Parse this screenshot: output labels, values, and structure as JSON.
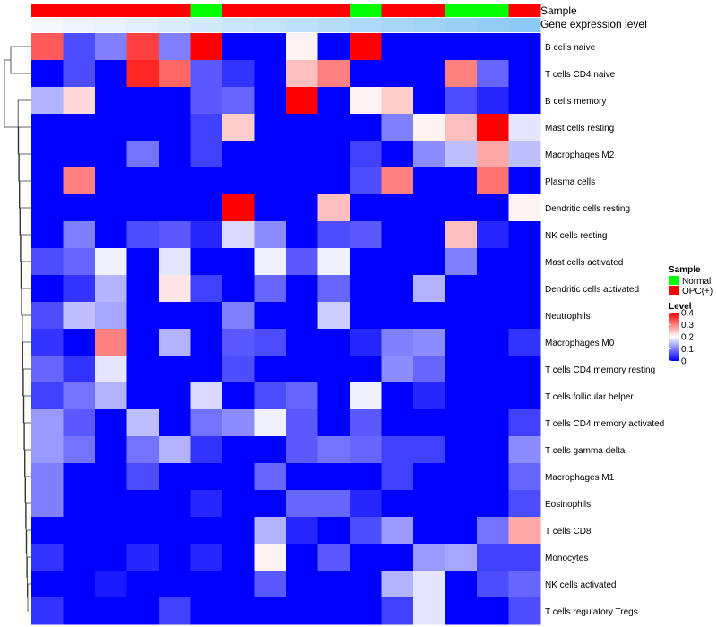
{
  "chart_data": {
    "type": "heatmap",
    "annotation_titles": {
      "sample": "Sample",
      "gene_expression": "Gene expression level"
    },
    "sample_annotation": [
      "OPC(+)",
      "OPC(+)",
      "OPC(+)",
      "OPC(+)",
      "OPC(+)",
      "Normal",
      "OPC(+)",
      "OPC(+)",
      "OPC(+)",
      "OPC(+)",
      "Normal",
      "OPC(+)",
      "OPC(+)",
      "Normal",
      "Normal",
      "OPC(+)"
    ],
    "gene_expression_annotation": [
      0.02,
      0.04,
      0.06,
      0.08,
      0.1,
      0.12,
      0.14,
      0.16,
      0.18,
      0.2,
      0.22,
      0.24,
      0.26,
      0.28,
      0.3,
      0.32
    ],
    "rows": [
      "B cells naive",
      "T cells CD4 naive",
      "B cells memory",
      "Mast cells resting",
      "Macrophages M2",
      "Plasma cells",
      "Dendritic cells resting",
      "NK cells resting",
      "Mast cells activated",
      "Dendritic cells activated",
      "Neutrophils",
      "Macrophages M0",
      "T cells CD4 memory resting",
      "T cells follicular helper",
      "T cells CD4 memory activated",
      "T cells gamma delta",
      "Macrophages M1",
      "Eosinophils",
      "T cells CD8",
      "Monocytes",
      "NK cells activated",
      "T cells regulatory  Tregs"
    ],
    "values": [
      [
        0.33,
        0.06,
        0.1,
        0.35,
        0.1,
        0.4,
        0,
        0,
        0.21,
        0,
        0.4,
        0,
        0,
        0,
        0,
        0
      ],
      [
        0,
        0.06,
        0,
        0.37,
        0.32,
        0.07,
        0.04,
        0,
        0.25,
        0.3,
        0,
        0,
        0,
        0.3,
        0.08,
        0
      ],
      [
        0.14,
        0.23,
        0,
        0,
        0,
        0.07,
        0.08,
        0,
        0.4,
        0,
        0.21,
        0.24,
        0,
        0.06,
        0.03,
        0
      ],
      [
        0,
        0,
        0,
        0,
        0,
        0.05,
        0.24,
        0,
        0,
        0,
        0,
        0.1,
        0.21,
        0.25,
        0.4,
        0.18
      ],
      [
        0,
        0,
        0,
        0.09,
        0,
        0.05,
        0,
        0,
        0,
        0,
        0.05,
        0,
        0.11,
        0.15,
        0.27,
        0.15
      ],
      [
        0,
        0.3,
        0,
        0,
        0,
        0,
        0,
        0,
        0,
        0,
        0.06,
        0.3,
        0,
        0,
        0.31,
        0
      ],
      [
        0,
        0,
        0,
        0,
        0,
        0,
        0.4,
        0,
        0,
        0.25,
        0,
        0,
        0,
        0,
        0,
        0.21
      ],
      [
        0,
        0.1,
        0,
        0.06,
        0.07,
        0.03,
        0.17,
        0.11,
        0,
        0.06,
        0.07,
        0,
        0,
        0.25,
        0.03,
        0
      ],
      [
        0.06,
        0.08,
        0.19,
        0,
        0.18,
        0,
        0,
        0.19,
        0.07,
        0.19,
        0,
        0,
        0,
        0.1,
        0,
        0
      ],
      [
        0,
        0.04,
        0.14,
        0,
        0.22,
        0.05,
        0,
        0.08,
        0,
        0.08,
        0,
        0,
        0.14,
        0,
        0,
        0
      ],
      [
        0.06,
        0.15,
        0.13,
        0,
        0,
        0,
        0.1,
        0,
        0,
        0.16,
        0,
        0,
        0,
        0,
        0,
        0
      ],
      [
        0.04,
        0,
        0.3,
        0,
        0.14,
        0,
        0.07,
        0.06,
        0,
        0,
        0.03,
        0.1,
        0.11,
        0,
        0,
        0.04
      ],
      [
        0.08,
        0.04,
        0.18,
        0,
        0,
        0,
        0.06,
        0,
        0,
        0,
        0,
        0.11,
        0.08,
        0,
        0,
        0
      ],
      [
        0.05,
        0.09,
        0.14,
        0,
        0,
        0.17,
        0,
        0.06,
        0.08,
        0,
        0.19,
        0,
        0.03,
        0,
        0,
        0
      ],
      [
        0.12,
        0.07,
        0,
        0.15,
        0,
        0.09,
        0.11,
        0.19,
        0.07,
        0,
        0.07,
        0,
        0,
        0,
        0,
        0.05
      ],
      [
        0.12,
        0.09,
        0,
        0.09,
        0.14,
        0.04,
        0,
        0,
        0.07,
        0.09,
        0.08,
        0.05,
        0.05,
        0,
        0,
        0.11
      ],
      [
        0.1,
        0,
        0,
        0.06,
        0,
        0,
        0,
        0.08,
        0,
        0,
        0,
        0.05,
        0,
        0,
        0,
        0.08
      ],
      [
        0.1,
        0,
        0,
        0,
        0,
        0.03,
        0,
        0,
        0.08,
        0.08,
        0.03,
        0,
        0,
        0,
        0,
        0.06
      ],
      [
        0,
        0,
        0,
        0,
        0,
        0,
        0,
        0.14,
        0.03,
        0,
        0.06,
        0.12,
        0,
        0,
        0.09,
        0.27
      ],
      [
        0.04,
        0,
        0,
        0.03,
        0,
        0.03,
        0,
        0.21,
        0,
        0.07,
        0,
        0,
        0.12,
        0.13,
        0.05,
        0.05
      ],
      [
        0,
        0,
        0.02,
        0,
        0,
        0,
        0,
        0.07,
        0,
        0,
        0,
        0.14,
        0.18,
        0,
        0.06,
        0.08
      ],
      [
        0.04,
        0,
        0,
        0,
        0.05,
        0,
        0,
        0,
        0,
        0,
        0,
        0.05,
        0.18,
        0,
        0,
        0.06
      ]
    ],
    "color_scale": {
      "min": 0,
      "max": 0.4,
      "low": "#0000ff",
      "mid": "#ffffff",
      "high": "#ff0000"
    },
    "colors": {
      "normal": "#00ff00",
      "opc": "#ff0000",
      "annot_low": "#f5f8fd",
      "annot_high": "#8ccaf5"
    },
    "legend": {
      "sample_title": "Sample",
      "sample_entries": [
        "Normal",
        "OPC(+)"
      ],
      "level_title": "Level",
      "level_ticks": [
        "0.4",
        "0.3",
        "0.2",
        "0.1",
        "0"
      ],
      "level_tick_values": [
        0.4,
        0.3,
        0.2,
        0.1,
        0
      ],
      "placement": "right"
    },
    "dendrogram": "rows"
  }
}
